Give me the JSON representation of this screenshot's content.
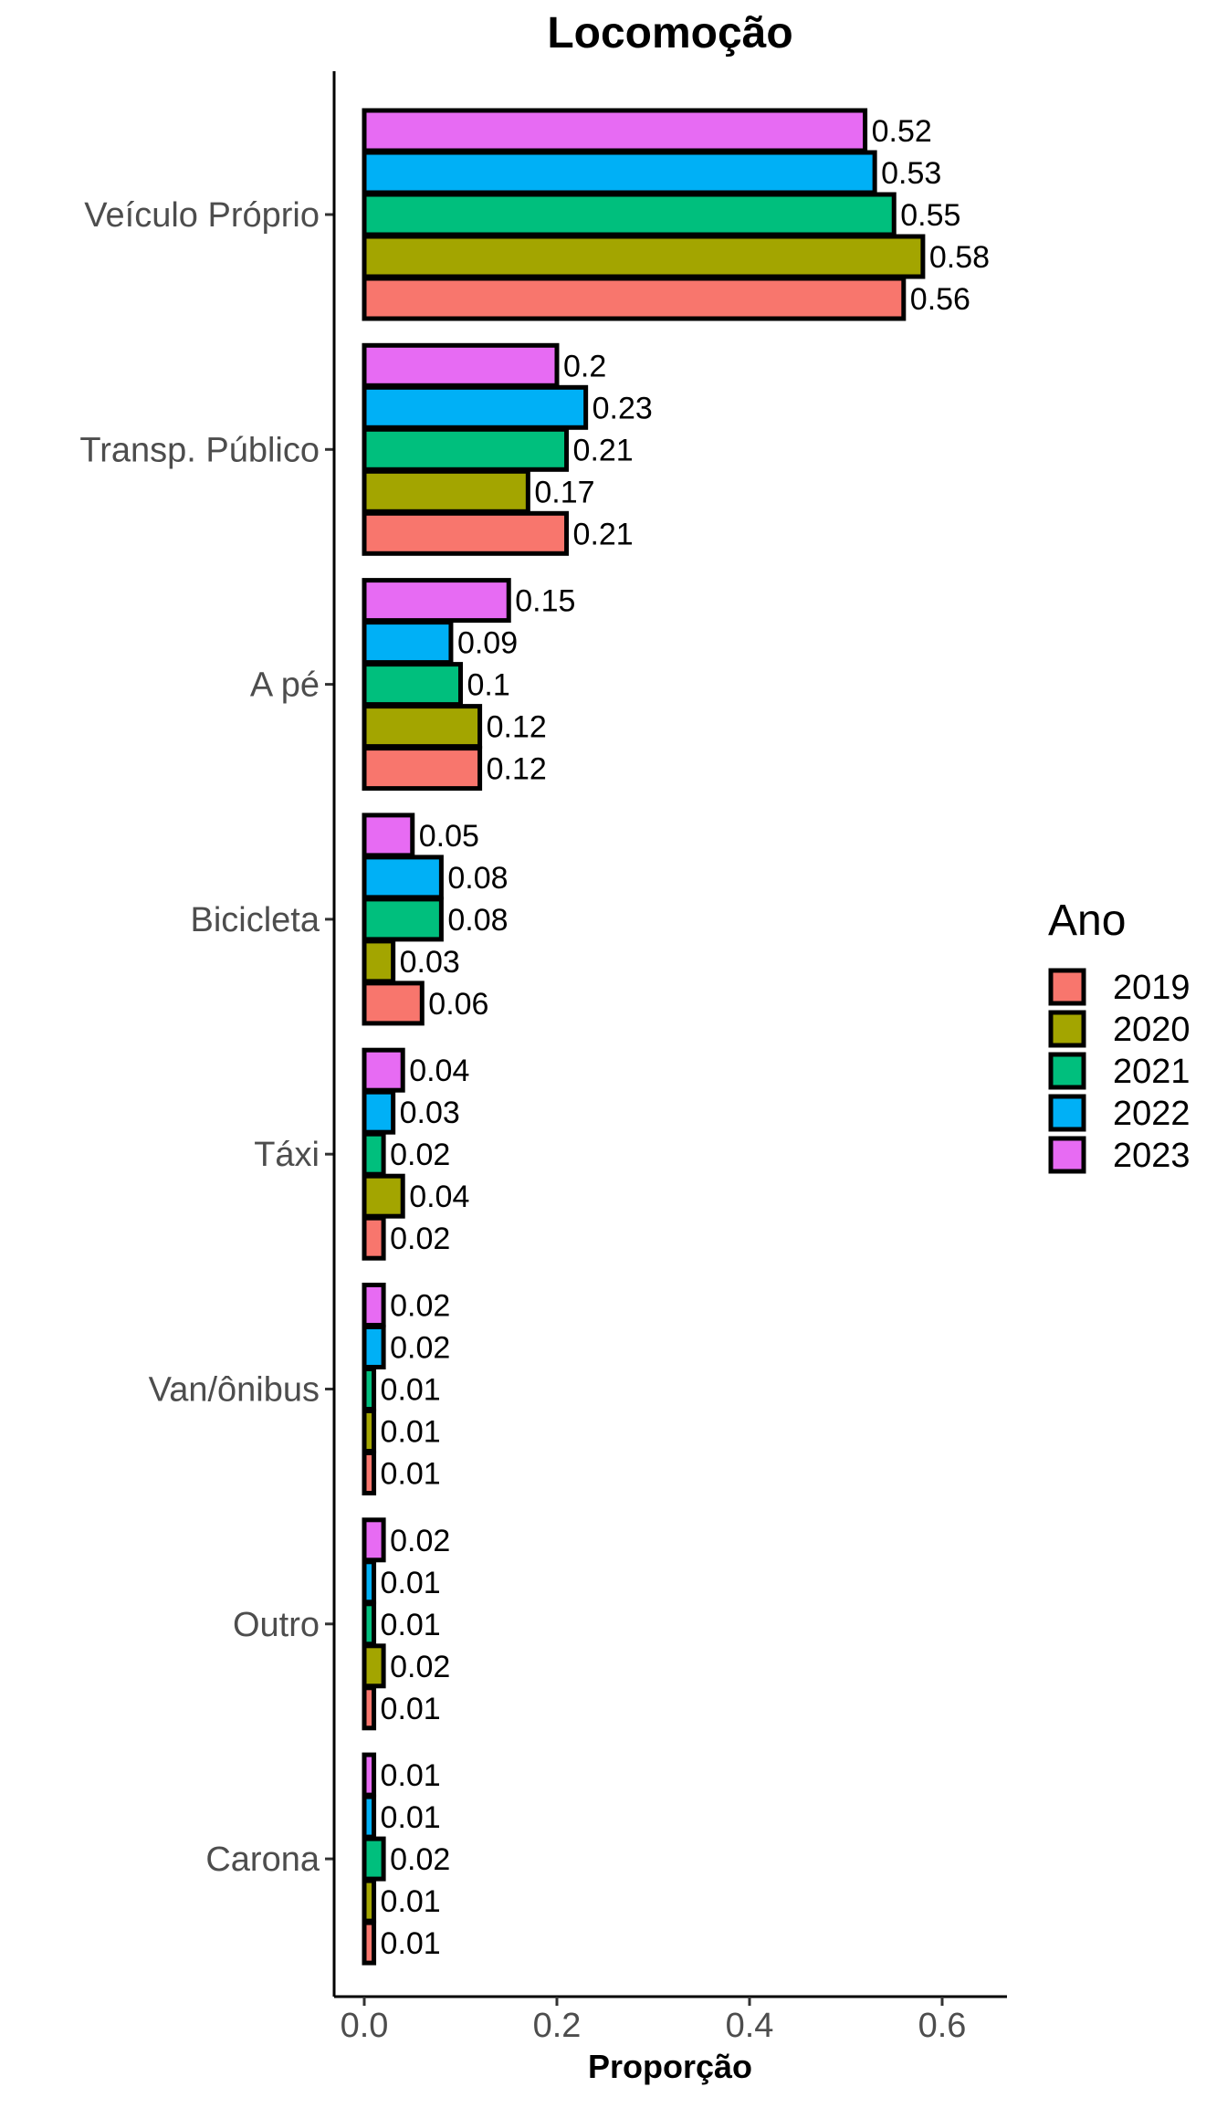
{
  "chart_data": {
    "type": "bar",
    "orientation": "horizontal",
    "title": "Locomoção",
    "xlabel": "Proporção",
    "ylabel": "",
    "xlim": [
      0,
      0.67
    ],
    "xticks": [
      "0.0",
      "0.2",
      "0.4",
      "0.6"
    ],
    "xtick_values": [
      0,
      0.2,
      0.4,
      0.6
    ],
    "grid": false,
    "legend": {
      "title": "Ano",
      "position": "right"
    },
    "categories": [
      "Veículo Próprio",
      "Transp. Público",
      "A pé",
      "Bicicleta",
      "Táxi",
      "Van/ônibus",
      "Outro",
      "Carona"
    ],
    "series": [
      {
        "name": "2019",
        "color": "#F8766D",
        "values": [
          0.56,
          0.21,
          0.12,
          0.06,
          0.02,
          0.01,
          0.01,
          0.01
        ]
      },
      {
        "name": "2020",
        "color": "#A3A500",
        "values": [
          0.58,
          0.17,
          0.12,
          0.03,
          0.04,
          0.01,
          0.02,
          0.01
        ]
      },
      {
        "name": "2021",
        "color": "#00BF7D",
        "values": [
          0.55,
          0.21,
          0.1,
          0.08,
          0.02,
          0.01,
          0.01,
          0.02
        ]
      },
      {
        "name": "2022",
        "color": "#00B0F6",
        "values": [
          0.53,
          0.23,
          0.09,
          0.08,
          0.03,
          0.02,
          0.01,
          0.01
        ]
      },
      {
        "name": "2023",
        "color": "#E76BF3",
        "values": [
          0.52,
          0.2,
          0.15,
          0.05,
          0.04,
          0.02,
          0.02,
          0.01
        ]
      }
    ]
  }
}
